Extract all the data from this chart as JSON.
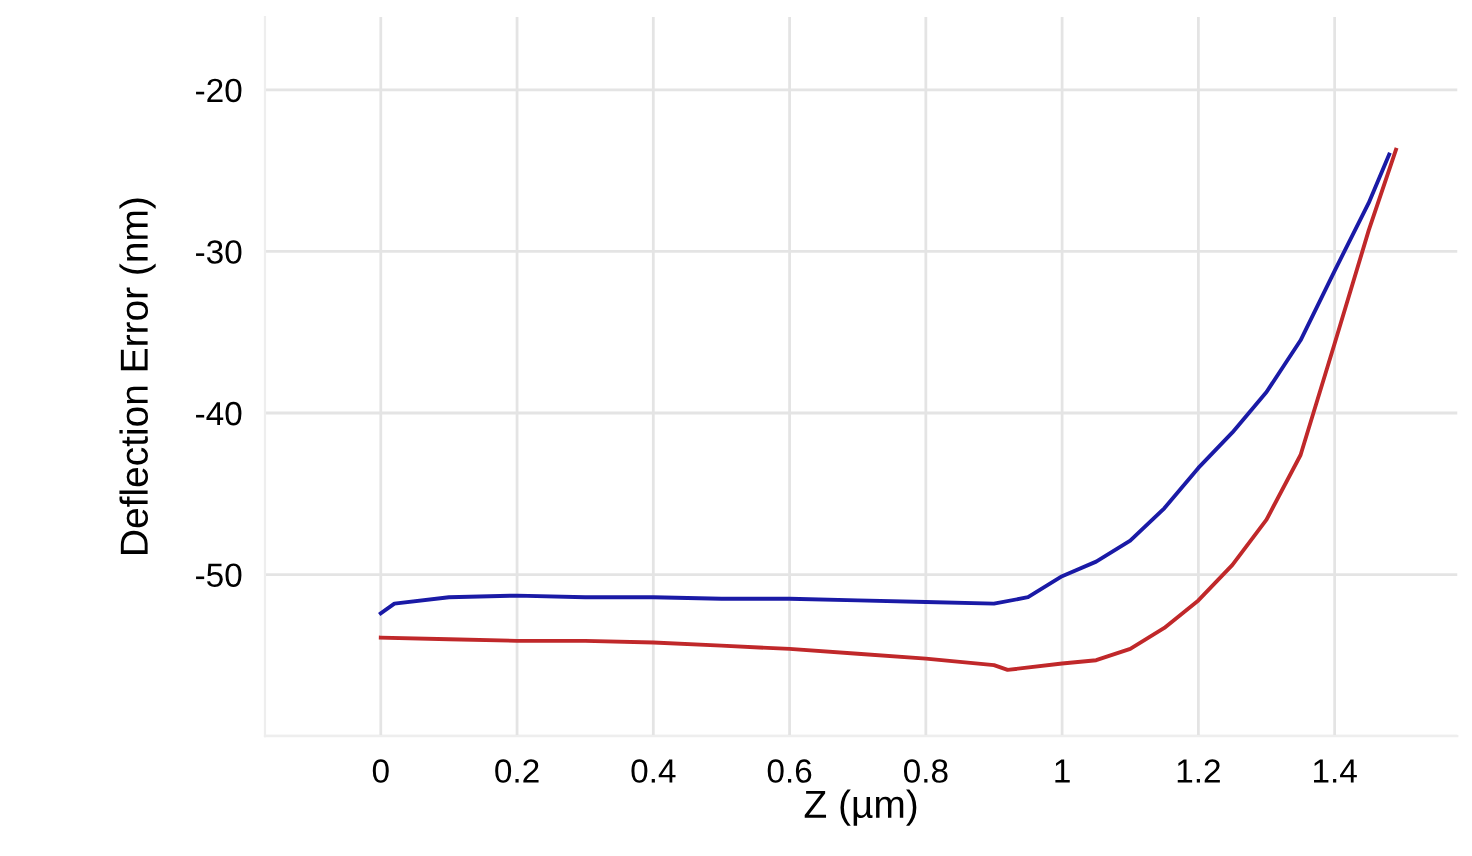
{
  "chart_data": {
    "type": "line",
    "xlabel": "Z (µm)",
    "ylabel": "Deflection Error (nm)",
    "xlim": [
      -0.17,
      1.58
    ],
    "ylim": [
      -60,
      -15.5
    ],
    "xticks": [
      0,
      0.2,
      0.4,
      0.6,
      0.8,
      1,
      1.2,
      1.4
    ],
    "yticks": [
      -20,
      -30,
      -40,
      -50,
      {
        "value": -60,
        "label": null
      }
    ],
    "grid": true,
    "legend": false,
    "marker": "none",
    "line_style": "solid",
    "series": [
      {
        "color": "#1a1aa6",
        "x": [
          0,
          0.02,
          0.1,
          0.2,
          0.3,
          0.4,
          0.5,
          0.6,
          0.7,
          0.8,
          0.9,
          0.95,
          1.0,
          1.05,
          1.1,
          1.15,
          1.2,
          1.25,
          1.3,
          1.35,
          1.4,
          1.45,
          1.48
        ],
        "values": [
          -52.4,
          -51.8,
          -51.4,
          -51.3,
          -51.4,
          -51.4,
          -51.5,
          -51.5,
          -51.6,
          -51.7,
          -51.8,
          -51.4,
          -50.1,
          -49.2,
          -47.9,
          -45.9,
          -43.4,
          -41.2,
          -38.7,
          -35.5,
          -31.2,
          -27.0,
          -24.0
        ]
      },
      {
        "color": "#c0282a",
        "x": [
          0,
          0.1,
          0.2,
          0.3,
          0.4,
          0.5,
          0.6,
          0.7,
          0.8,
          0.9,
          0.92,
          1.0,
          1.05,
          1.1,
          1.15,
          1.2,
          1.25,
          1.3,
          1.35,
          1.4,
          1.45,
          1.49
        ],
        "values": [
          -53.9,
          -54.0,
          -54.1,
          -54.1,
          -54.2,
          -54.4,
          -54.6,
          -54.9,
          -55.2,
          -55.6,
          -55.9,
          -55.5,
          -55.3,
          -54.6,
          -53.3,
          -51.6,
          -49.4,
          -46.6,
          -42.6,
          -35.7,
          -28.7,
          -23.7
        ]
      }
    ]
  }
}
